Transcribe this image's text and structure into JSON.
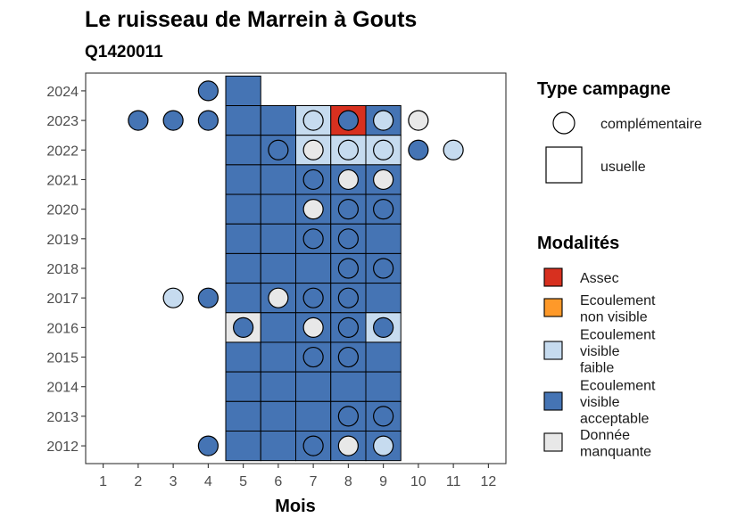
{
  "chart_data": {
    "type": "heatmap",
    "title": "Le ruisseau de Marrein à Gouts",
    "subtitle": "Q1420011",
    "xlabel": "Mois",
    "ylabel": "",
    "x_ticks": [
      1,
      2,
      3,
      4,
      5,
      6,
      7,
      8,
      9,
      10,
      11,
      12
    ],
    "y_ticks": [
      2012,
      2013,
      2014,
      2015,
      2016,
      2017,
      2018,
      2019,
      2020,
      2021,
      2022,
      2023,
      2024
    ],
    "xlim": [
      0.5,
      12.5
    ],
    "ylim": [
      2011.4,
      2024.6
    ],
    "grid": false,
    "legend_position": "right",
    "legend": {
      "shape_title": "Type campagne",
      "shape_entries": [
        {
          "key": "complementaire",
          "label": "complémentaire"
        },
        {
          "key": "usuelle",
          "label": "usuelle"
        }
      ],
      "color_title": "Modalités",
      "color_entries": [
        {
          "key": "assec",
          "label_lines": [
            "Assec"
          ],
          "color": "#d7301f"
        },
        {
          "key": "nonvisible",
          "label_lines": [
            "Ecoulement",
            "non visible"
          ],
          "color": "#fe9929"
        },
        {
          "key": "faible",
          "label_lines": [
            "Ecoulement",
            "visible",
            "faible"
          ],
          "color": "#c6dbef"
        },
        {
          "key": "acceptable",
          "label_lines": [
            "Ecoulement",
            "visible",
            "acceptable"
          ],
          "color": "#4574b4"
        },
        {
          "key": "manquante",
          "label_lines": [
            "Donnée",
            "manquante"
          ],
          "color": "#e8e8e8"
        }
      ]
    },
    "tiles": [
      {
        "year": 2024,
        "month": 5,
        "status": "acceptable"
      },
      {
        "year": 2023,
        "month": 5,
        "status": "acceptable"
      },
      {
        "year": 2023,
        "month": 6,
        "status": "acceptable"
      },
      {
        "year": 2023,
        "month": 7,
        "status": "faible"
      },
      {
        "year": 2023,
        "month": 8,
        "status": "assec"
      },
      {
        "year": 2023,
        "month": 9,
        "status": "acceptable"
      },
      {
        "year": 2022,
        "month": 5,
        "status": "acceptable"
      },
      {
        "year": 2022,
        "month": 6,
        "status": "acceptable"
      },
      {
        "year": 2022,
        "month": 7,
        "status": "faible"
      },
      {
        "year": 2022,
        "month": 8,
        "status": "faible"
      },
      {
        "year": 2022,
        "month": 9,
        "status": "faible"
      },
      {
        "year": 2021,
        "month": 5,
        "status": "acceptable"
      },
      {
        "year": 2021,
        "month": 6,
        "status": "acceptable"
      },
      {
        "year": 2021,
        "month": 7,
        "status": "acceptable"
      },
      {
        "year": 2021,
        "month": 8,
        "status": "acceptable"
      },
      {
        "year": 2021,
        "month": 9,
        "status": "acceptable"
      },
      {
        "year": 2020,
        "month": 5,
        "status": "acceptable"
      },
      {
        "year": 2020,
        "month": 6,
        "status": "acceptable"
      },
      {
        "year": 2020,
        "month": 7,
        "status": "acceptable"
      },
      {
        "year": 2020,
        "month": 8,
        "status": "acceptable"
      },
      {
        "year": 2020,
        "month": 9,
        "status": "acceptable"
      },
      {
        "year": 2019,
        "month": 5,
        "status": "acceptable"
      },
      {
        "year": 2019,
        "month": 6,
        "status": "acceptable"
      },
      {
        "year": 2019,
        "month": 7,
        "status": "acceptable"
      },
      {
        "year": 2019,
        "month": 8,
        "status": "acceptable"
      },
      {
        "year": 2019,
        "month": 9,
        "status": "acceptable"
      },
      {
        "year": 2018,
        "month": 5,
        "status": "acceptable"
      },
      {
        "year": 2018,
        "month": 6,
        "status": "acceptable"
      },
      {
        "year": 2018,
        "month": 7,
        "status": "acceptable"
      },
      {
        "year": 2018,
        "month": 8,
        "status": "acceptable"
      },
      {
        "year": 2018,
        "month": 9,
        "status": "acceptable"
      },
      {
        "year": 2017,
        "month": 5,
        "status": "acceptable"
      },
      {
        "year": 2017,
        "month": 6,
        "status": "acceptable"
      },
      {
        "year": 2017,
        "month": 7,
        "status": "acceptable"
      },
      {
        "year": 2017,
        "month": 8,
        "status": "acceptable"
      },
      {
        "year": 2017,
        "month": 9,
        "status": "acceptable"
      },
      {
        "year": 2016,
        "month": 5,
        "status": "manquante"
      },
      {
        "year": 2016,
        "month": 6,
        "status": "acceptable"
      },
      {
        "year": 2016,
        "month": 7,
        "status": "acceptable"
      },
      {
        "year": 2016,
        "month": 8,
        "status": "acceptable"
      },
      {
        "year": 2016,
        "month": 9,
        "status": "faible"
      },
      {
        "year": 2015,
        "month": 5,
        "status": "acceptable"
      },
      {
        "year": 2015,
        "month": 6,
        "status": "acceptable"
      },
      {
        "year": 2015,
        "month": 7,
        "status": "acceptable"
      },
      {
        "year": 2015,
        "month": 8,
        "status": "acceptable"
      },
      {
        "year": 2015,
        "month": 9,
        "status": "acceptable"
      },
      {
        "year": 2014,
        "month": 5,
        "status": "acceptable"
      },
      {
        "year": 2014,
        "month": 6,
        "status": "acceptable"
      },
      {
        "year": 2014,
        "month": 7,
        "status": "acceptable"
      },
      {
        "year": 2014,
        "month": 8,
        "status": "acceptable"
      },
      {
        "year": 2014,
        "month": 9,
        "status": "acceptable"
      },
      {
        "year": 2013,
        "month": 5,
        "status": "acceptable"
      },
      {
        "year": 2013,
        "month": 6,
        "status": "acceptable"
      },
      {
        "year": 2013,
        "month": 7,
        "status": "acceptable"
      },
      {
        "year": 2013,
        "month": 8,
        "status": "acceptable"
      },
      {
        "year": 2013,
        "month": 9,
        "status": "acceptable"
      },
      {
        "year": 2012,
        "month": 5,
        "status": "acceptable"
      },
      {
        "year": 2012,
        "month": 6,
        "status": "acceptable"
      },
      {
        "year": 2012,
        "month": 7,
        "status": "acceptable"
      },
      {
        "year": 2012,
        "month": 8,
        "status": "acceptable"
      },
      {
        "year": 2012,
        "month": 9,
        "status": "acceptable"
      }
    ],
    "points": [
      {
        "year": 2024,
        "month": 4,
        "status": "acceptable"
      },
      {
        "year": 2023,
        "month": 2,
        "status": "acceptable"
      },
      {
        "year": 2023,
        "month": 3,
        "status": "acceptable"
      },
      {
        "year": 2023,
        "month": 4,
        "status": "acceptable"
      },
      {
        "year": 2023,
        "month": 7,
        "status": "faible"
      },
      {
        "year": 2023,
        "month": 8,
        "status": "acceptable"
      },
      {
        "year": 2023,
        "month": 9,
        "status": "faible"
      },
      {
        "year": 2023,
        "month": 10,
        "status": "manquante"
      },
      {
        "year": 2022,
        "month": 6,
        "status": "acceptable"
      },
      {
        "year": 2022,
        "month": 7,
        "status": "manquante"
      },
      {
        "year": 2022,
        "month": 8,
        "status": "faible"
      },
      {
        "year": 2022,
        "month": 9,
        "status": "faible"
      },
      {
        "year": 2022,
        "month": 10,
        "status": "acceptable"
      },
      {
        "year": 2022,
        "month": 11,
        "status": "faible"
      },
      {
        "year": 2021,
        "month": 7,
        "status": "acceptable"
      },
      {
        "year": 2021,
        "month": 8,
        "status": "manquante"
      },
      {
        "year": 2021,
        "month": 9,
        "status": "manquante"
      },
      {
        "year": 2020,
        "month": 7,
        "status": "manquante"
      },
      {
        "year": 2020,
        "month": 8,
        "status": "acceptable"
      },
      {
        "year": 2020,
        "month": 9,
        "status": "acceptable"
      },
      {
        "year": 2019,
        "month": 7,
        "status": "acceptable"
      },
      {
        "year": 2019,
        "month": 8,
        "status": "acceptable"
      },
      {
        "year": 2018,
        "month": 8,
        "status": "acceptable"
      },
      {
        "year": 2018,
        "month": 9,
        "status": "acceptable"
      },
      {
        "year": 2017,
        "month": 3,
        "status": "faible"
      },
      {
        "year": 2017,
        "month": 4,
        "status": "acceptable"
      },
      {
        "year": 2017,
        "month": 6,
        "status": "manquante"
      },
      {
        "year": 2017,
        "month": 7,
        "status": "acceptable"
      },
      {
        "year": 2017,
        "month": 8,
        "status": "acceptable"
      },
      {
        "year": 2016,
        "month": 5,
        "status": "acceptable"
      },
      {
        "year": 2016,
        "month": 7,
        "status": "manquante"
      },
      {
        "year": 2016,
        "month": 8,
        "status": "acceptable"
      },
      {
        "year": 2016,
        "month": 9,
        "status": "acceptable"
      },
      {
        "year": 2015,
        "month": 7,
        "status": "acceptable"
      },
      {
        "year": 2015,
        "month": 8,
        "status": "acceptable"
      },
      {
        "year": 2013,
        "month": 8,
        "status": "acceptable"
      },
      {
        "year": 2013,
        "month": 9,
        "status": "acceptable"
      },
      {
        "year": 2012,
        "month": 4,
        "status": "acceptable"
      },
      {
        "year": 2012,
        "month": 7,
        "status": "acceptable"
      },
      {
        "year": 2012,
        "month": 8,
        "status": "manquante"
      },
      {
        "year": 2012,
        "month": 9,
        "status": "faible"
      }
    ]
  }
}
